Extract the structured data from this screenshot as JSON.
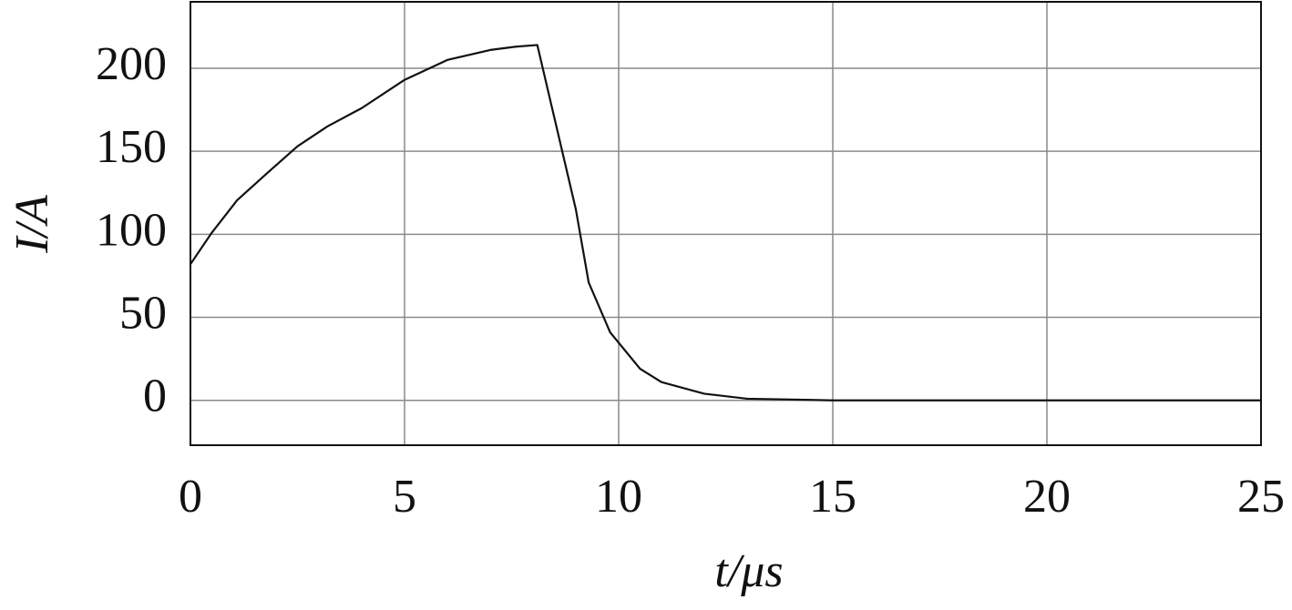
{
  "chart_data": {
    "type": "line",
    "x_label": "t/μs",
    "y_label": "I/A",
    "x": [
      0,
      0.5,
      1.09,
      1.8,
      2.5,
      3.2,
      4,
      5,
      6,
      7,
      7.6,
      8.1,
      8.5,
      9,
      9.3,
      9.8,
      10.5,
      11,
      12,
      13,
      15,
      20,
      25
    ],
    "series": [
      {
        "color": "#111111",
        "values": [
          82,
          101,
          120.5,
          137,
          153,
          165,
          176,
          193,
          205,
          211,
          213,
          214,
          170,
          115,
          71,
          41,
          19,
          11,
          4,
          1,
          0,
          0,
          0
        ]
      }
    ],
    "xlim": [
      0,
      25
    ],
    "xticks": [
      0,
      5,
      10,
      15,
      20,
      25
    ],
    "ylim": [
      -27,
      240
    ],
    "yticks": [
      0,
      50,
      100,
      150,
      200
    ],
    "grid": true
  }
}
